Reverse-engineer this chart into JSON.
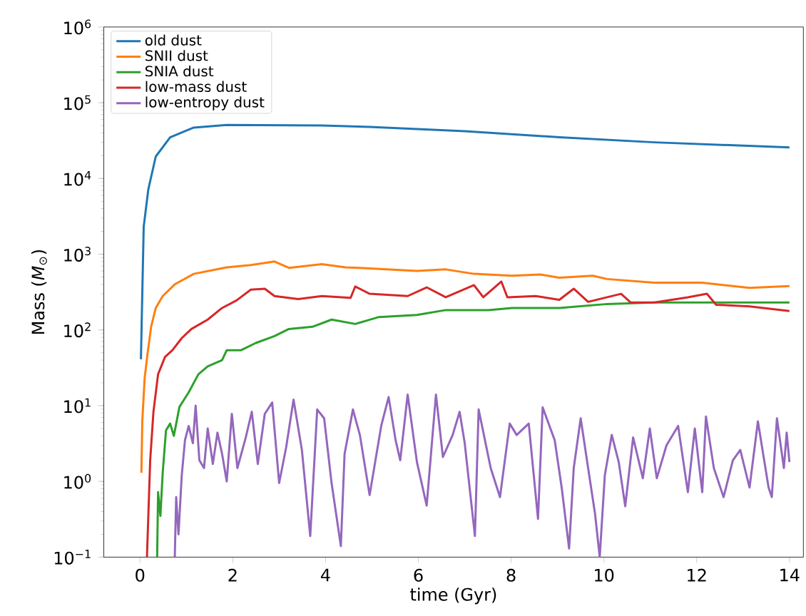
{
  "chart_data": {
    "type": "line",
    "xlabel": "time (Gyr)",
    "ylabel": "Mass (*M*$_{⊙}$)",
    "log": "y",
    "legend": "top left",
    "grid": false,
    "marker": "none",
    "line_style": "solid",
    "xlim": [
      -0.78,
      14.3
    ],
    "ylim": [
      0.1,
      1000000
    ],
    "xticks": [
      0,
      2,
      4,
      6,
      8,
      10,
      12,
      14
    ],
    "yticks": [
      {
        "value": 0.1,
        "label": "10$^{−1}$"
      },
      {
        "value": 1,
        "label": "10$^{0}$"
      },
      {
        "value": 10,
        "label": "10$^{1}$"
      },
      {
        "value": 100,
        "label": "10$^{2}$"
      },
      {
        "value": 1000,
        "label": "10$^{3}$"
      },
      {
        "value": 10000,
        "label": "10$^{4}$"
      },
      {
        "value": 100000,
        "label": "10$^{5}$"
      },
      {
        "value": 1000000,
        "label": "10$^{6}$"
      }
    ],
    "series": [
      {
        "name": "old dust",
        "color": "#1f77b4",
        "x": [
          0.02,
          0.08,
          0.18,
          0.34,
          0.65,
          1.16,
          1.87,
          3.92,
          4.95,
          7.0,
          9.04,
          11.09,
          14.0
        ],
        "values": [
          41,
          2300,
          7200,
          19500,
          35000,
          47000,
          51000,
          50000,
          48000,
          42000,
          35000,
          30000,
          25700
        ]
      },
      {
        "name": "SNII dust",
        "color": "#ff7f0e",
        "x": [
          0.03,
          0.05,
          0.1,
          0.16,
          0.24,
          0.34,
          0.49,
          0.75,
          1.16,
          1.87,
          2.39,
          2.9,
          3.21,
          3.92,
          4.43,
          4.95,
          5.97,
          6.59,
          7.2,
          8.02,
          8.63,
          9.04,
          9.76,
          10.07,
          11.09,
          12.12,
          13.14,
          14.0
        ],
        "values": [
          1.3,
          6.3,
          23,
          47,
          110,
          195,
          280,
          400,
          550,
          670,
          720,
          800,
          660,
          740,
          670,
          650,
          600,
          630,
          550,
          520,
          540,
          490,
          520,
          470,
          420,
          420,
          360,
          380
        ]
      },
      {
        "name": "SNIA dust",
        "color": "#2ca02c",
        "x": [
          0.37,
          0.39,
          0.44,
          0.49,
          0.56,
          0.65,
          0.73,
          0.85,
          1.05,
          1.26,
          1.46,
          1.77,
          1.87,
          2.18,
          2.49,
          2.9,
          3.21,
          3.72,
          4.13,
          4.64,
          5.15,
          5.97,
          6.59,
          7.51,
          8.02,
          9.04,
          10.07,
          11.09,
          12.12,
          13.14,
          14.0
        ],
        "values": [
          0.1,
          0.72,
          0.35,
          1.3,
          4.7,
          5.8,
          4.0,
          9.6,
          15,
          26,
          33,
          40,
          54,
          54,
          67,
          83,
          103,
          110,
          137,
          120,
          148,
          158,
          183,
          183,
          195,
          195,
          220,
          230,
          230,
          230,
          230
        ]
      },
      {
        "name": "low-mass dust",
        "color": "#d62728",
        "x": [
          0.15,
          0.22,
          0.29,
          0.39,
          0.54,
          0.7,
          0.9,
          1.11,
          1.46,
          1.77,
          2.08,
          2.39,
          2.69,
          2.9,
          3.41,
          3.92,
          4.54,
          4.64,
          4.95,
          5.77,
          6.18,
          6.59,
          7.2,
          7.4,
          7.79,
          7.92,
          8.53,
          9.04,
          9.35,
          9.66,
          10.37,
          10.58,
          11.09,
          11.81,
          12.22,
          12.42,
          13.14,
          14.0
        ],
        "values": [
          0.1,
          1.9,
          8.3,
          26,
          44,
          54,
          78,
          103,
          137,
          195,
          245,
          340,
          350,
          280,
          255,
          280,
          265,
          375,
          300,
          280,
          365,
          270,
          390,
          270,
          435,
          270,
          280,
          250,
          350,
          235,
          300,
          230,
          230,
          270,
          300,
          215,
          205,
          178
        ]
      },
      {
        "name": "low-entropy dust",
        "color": "#9467bd",
        "x": [
          0.75,
          0.78,
          0.83,
          0.9,
          0.97,
          1.05,
          1.14,
          1.2,
          1.28,
          1.38,
          1.46,
          1.57,
          1.67,
          1.77,
          1.87,
          1.98,
          2.1,
          2.28,
          2.41,
          2.54,
          2.69,
          2.85,
          3.0,
          3.15,
          3.31,
          3.49,
          3.67,
          3.82,
          3.97,
          4.13,
          4.33,
          4.41,
          4.59,
          4.74,
          4.95,
          5.2,
          5.36,
          5.51,
          5.61,
          5.77,
          5.97,
          6.18,
          6.38,
          6.53,
          6.74,
          6.89,
          7.0,
          7.22,
          7.3,
          7.56,
          7.76,
          7.97,
          8.12,
          8.38,
          8.58,
          8.68,
          8.94,
          9.09,
          9.25,
          9.35,
          9.5,
          9.66,
          9.81,
          9.91,
          10.02,
          10.17,
          10.32,
          10.46,
          10.63,
          10.84,
          10.99,
          11.14,
          11.35,
          11.6,
          11.81,
          11.96,
          12.12,
          12.2,
          12.37,
          12.58,
          12.78,
          12.94,
          13.14,
          13.32,
          13.55,
          13.62,
          13.73,
          13.88,
          13.94,
          14.0
        ],
        "values": [
          0.1,
          0.62,
          0.2,
          1.2,
          3.5,
          5.4,
          3.2,
          10,
          1.9,
          1.5,
          5.0,
          1.7,
          4.4,
          2.3,
          1.0,
          7.8,
          1.5,
          3.8,
          8.3,
          1.7,
          7.8,
          11,
          0.95,
          2.8,
          12,
          2.6,
          0.19,
          8.9,
          6.8,
          0.95,
          0.14,
          2.3,
          8.9,
          4.1,
          0.66,
          5.4,
          13,
          3.5,
          1.9,
          14,
          1.8,
          0.48,
          14,
          2.1,
          4.1,
          8.3,
          3.2,
          0.19,
          8.9,
          1.5,
          0.62,
          5.8,
          4.1,
          5.8,
          0.32,
          9.5,
          3.5,
          0.83,
          0.13,
          1.5,
          6.8,
          1.5,
          0.37,
          0.1,
          1.2,
          4.1,
          1.8,
          0.47,
          3.8,
          1.1,
          5.0,
          1.1,
          3.0,
          5.4,
          0.72,
          5.0,
          0.72,
          7.2,
          1.5,
          0.62,
          1.9,
          2.6,
          0.83,
          6.2,
          0.83,
          0.62,
          6.8,
          1.5,
          4.4,
          1.8
        ]
      }
    ]
  }
}
